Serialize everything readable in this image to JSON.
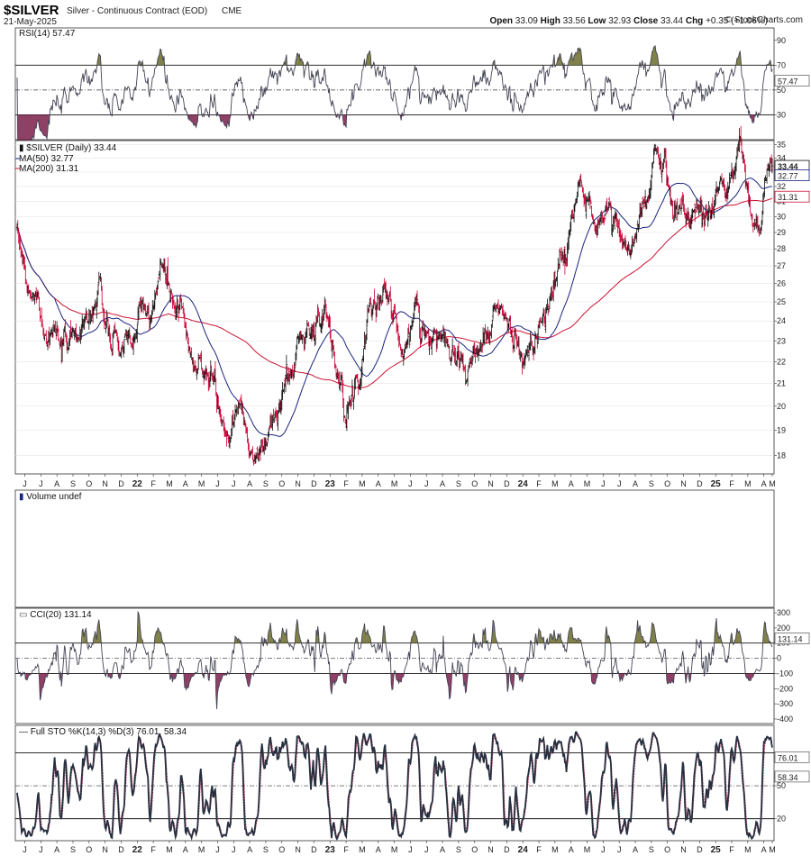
{
  "header": {
    "symbol": "$SILVER",
    "description": "Silver - Continuous Contract (EOD)",
    "exchange": "CME",
    "date": "21-May-2025",
    "ohlc": [
      {
        "label": "Open",
        "value": "33.09"
      },
      {
        "label": "High",
        "value": "33.56"
      },
      {
        "label": "Low",
        "value": "32.93"
      },
      {
        "label": "Close",
        "value": "33.44"
      },
      {
        "label": "Chg",
        "value": "+0.35 (+1.06%)"
      }
    ],
    "brand": "© StockCharts.com"
  },
  "colors": {
    "price": "#111111",
    "price_down": "#cc0033",
    "ma50": "#1a237e",
    "ma200": "#cc1133",
    "indicator": "#444455",
    "overbought_fill": "#6b6b2a",
    "oversold_fill": "#7a1f4a"
  },
  "x_axis": {
    "labels": [
      "J",
      "J",
      "A",
      "S",
      "O",
      "N",
      "D",
      "22",
      "F",
      "M",
      "A",
      "M",
      "J",
      "J",
      "A",
      "S",
      "O",
      "N",
      "D",
      "23",
      "F",
      "M",
      "A",
      "M",
      "J",
      "J",
      "A",
      "S",
      "O",
      "N",
      "D",
      "24",
      "F",
      "M",
      "A",
      "M",
      "J",
      "J",
      "A",
      "S",
      "O",
      "N",
      "D",
      "25",
      "F",
      "M",
      "A",
      "M"
    ]
  },
  "chart_data": [
    {
      "id": "rsi",
      "type": "line",
      "label": "RSI(14) 57.47",
      "current": "57.47",
      "ylim": [
        10,
        100
      ],
      "yticks": [
        "90",
        "70",
        "50",
        "30"
      ],
      "reference_lines": [
        70,
        50,
        30
      ]
    },
    {
      "id": "price",
      "type": "line",
      "title": "$SILVER (Daily) 33.44",
      "scale": "log",
      "ylim": [
        17.3,
        35.3
      ],
      "yticks": [
        "35",
        "34",
        "33",
        "32",
        "31",
        "30",
        "29",
        "28",
        "27",
        "26",
        "25",
        "24",
        "23",
        "22",
        "21",
        "20",
        "19",
        "18"
      ],
      "legend": [
        {
          "name": "MA(50) 32.77",
          "color": "#1a237e"
        },
        {
          "name": "MA(200) 31.31",
          "color": "#cc1133"
        }
      ],
      "value_tags": [
        {
          "value": "33.44",
          "at": 33.44,
          "style": "bold"
        },
        {
          "value": "32.77",
          "at": 32.77,
          "style": "plain"
        },
        {
          "value": "31.31",
          "at": 31.31,
          "style": "red"
        }
      ],
      "anchors": [
        {
          "x": "2021-06",
          "close": 28.0
        },
        {
          "x": "2021-07",
          "close": 25.8
        },
        {
          "x": "2021-08",
          "close": 23.5
        },
        {
          "x": "2021-09",
          "close": 22.2
        },
        {
          "x": "2021-10",
          "close": 24.0
        },
        {
          "x": "2021-11",
          "close": 25.0
        },
        {
          "x": "2021-12",
          "close": 22.5
        },
        {
          "x": "2022-01",
          "close": 23.0
        },
        {
          "x": "2022-02",
          "close": 24.0
        },
        {
          "x": "2022-03",
          "close": 26.5
        },
        {
          "x": "2022-04",
          "close": 24.5
        },
        {
          "x": "2022-05",
          "close": 21.5
        },
        {
          "x": "2022-06",
          "close": 21.8
        },
        {
          "x": "2022-07",
          "close": 18.8
        },
        {
          "x": "2022-08",
          "close": 20.0
        },
        {
          "x": "2022-09",
          "close": 17.8
        },
        {
          "x": "2022-10",
          "close": 19.5
        },
        {
          "x": "2022-11",
          "close": 21.5
        },
        {
          "x": "2022-12",
          "close": 24.0
        },
        {
          "x": "2023-01",
          "close": 24.2
        },
        {
          "x": "2023-02",
          "close": 21.8
        },
        {
          "x": "2023-03",
          "close": 20.5
        },
        {
          "x": "2023-04",
          "close": 25.0
        },
        {
          "x": "2023-05",
          "close": 25.5
        },
        {
          "x": "2023-06",
          "close": 22.5
        },
        {
          "x": "2023-07",
          "close": 24.5
        },
        {
          "x": "2023-08",
          "close": 23.0
        },
        {
          "x": "2023-09",
          "close": 23.5
        },
        {
          "x": "2023-10",
          "close": 21.5
        },
        {
          "x": "2023-11",
          "close": 23.0
        },
        {
          "x": "2023-12",
          "close": 24.5
        },
        {
          "x": "2024-01",
          "close": 23.0
        },
        {
          "x": "2024-02",
          "close": 22.5
        },
        {
          "x": "2024-03",
          "close": 24.5
        },
        {
          "x": "2024-04",
          "close": 27.5
        },
        {
          "x": "2024-05",
          "close": 31.5
        },
        {
          "x": "2024-06",
          "close": 30.0
        },
        {
          "x": "2024-07",
          "close": 30.5
        },
        {
          "x": "2024-08",
          "close": 27.5
        },
        {
          "x": "2024-09",
          "close": 30.5
        },
        {
          "x": "2024-10",
          "close": 34.5
        },
        {
          "x": "2024-11",
          "close": 31.0
        },
        {
          "x": "2024-12",
          "close": 30.0
        },
        {
          "x": "2025-01",
          "close": 30.5
        },
        {
          "x": "2025-02",
          "close": 32.5
        },
        {
          "x": "2025-03",
          "close": 33.8
        },
        {
          "x": "2025-04",
          "close": 29.0
        },
        {
          "x": "2025-05",
          "close": 33.44
        }
      ]
    },
    {
      "id": "volume",
      "type": "bar",
      "label": "Volume undef",
      "values": []
    },
    {
      "id": "cci",
      "type": "line",
      "label": "CCI(20) 131.14",
      "current": "131.14",
      "ylim": [
        -430,
        330
      ],
      "yticks": [
        "300",
        "200",
        "100",
        "0",
        "-100",
        "-200",
        "-300",
        "-400"
      ],
      "reference_lines": [
        100,
        0,
        -100
      ]
    },
    {
      "id": "stoch",
      "type": "line",
      "label": "Full STO %K(14,3) %D(3) 76.01, 58.34",
      "current_k": "76.01",
      "current_d": "58.34",
      "ylim": [
        0,
        105
      ],
      "yticks": [
        "50",
        "20"
      ],
      "reference_lines": [
        80,
        50,
        20
      ]
    }
  ]
}
